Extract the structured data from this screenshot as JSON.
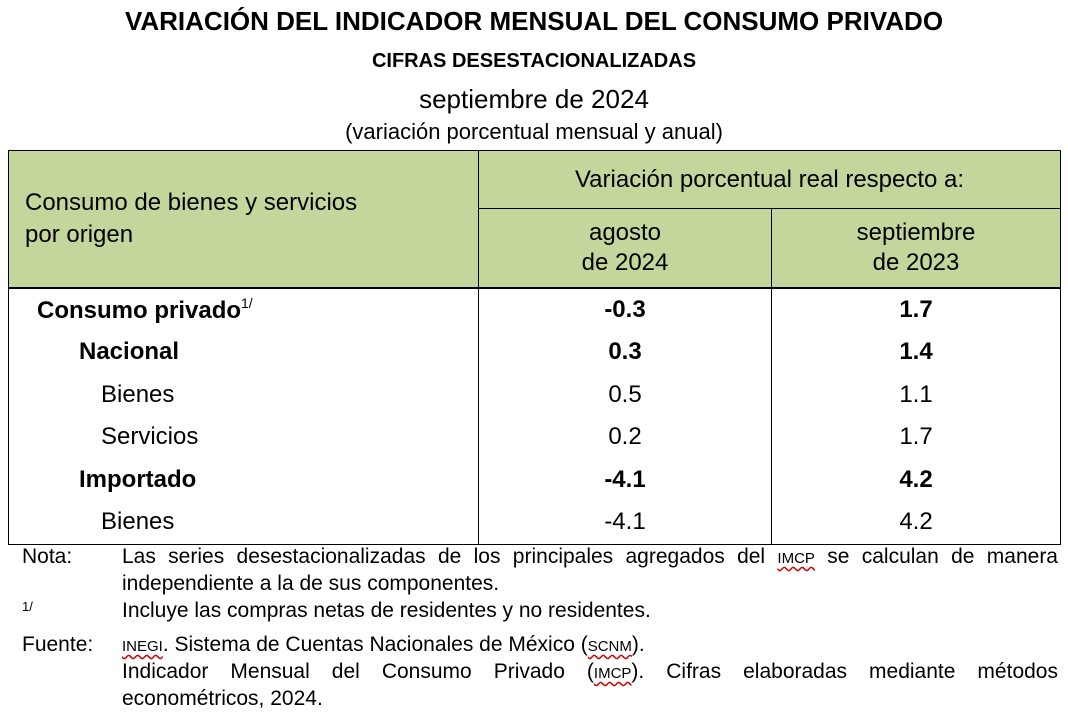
{
  "header": {
    "title": "VARIACIÓN DEL INDICADOR MENSUAL DEL CONSUMO PRIVADO",
    "subtitle": "CIFRAS DESESTACIONALIZADAS",
    "period": "septiembre de 2024",
    "unit": "(variación porcentual mensual y anual)"
  },
  "table": {
    "row_header": [
      "Consumo de bienes y servicios",
      "por origen"
    ],
    "group_header": "Variación porcentual real respecto a:",
    "columns": [
      [
        "agosto",
        "de 2024"
      ],
      [
        "septiembre",
        "de 2023"
      ]
    ],
    "rows": [
      {
        "label": "Consumo privado",
        "footnote": "1/",
        "level": 0,
        "values": [
          "-0.3",
          "1.7"
        ]
      },
      {
        "label": "Nacional",
        "level": 1,
        "values": [
          "0.3",
          "1.4"
        ]
      },
      {
        "label": "Bienes",
        "level": 2,
        "values": [
          "0.5",
          "1.1"
        ]
      },
      {
        "label": "Servicios",
        "level": 2,
        "values": [
          "0.2",
          "1.7"
        ]
      },
      {
        "label": "Importado",
        "level": 1,
        "values": [
          "-4.1",
          "4.2"
        ]
      },
      {
        "label": "Bienes",
        "level": 2,
        "values": [
          "-4.1",
          "4.2"
        ]
      }
    ]
  },
  "notes": [
    {
      "label": "Nota:",
      "lines": [
        [
          "Las series desestacionalizadas de los principales agregados del ",
          {
            "abbr": "IMCP"
          },
          " se calculan de manera independiente a la de sus componentes."
        ]
      ]
    },
    {
      "label": "1/",
      "lines": [
        [
          "Incluye las compras netas de residentes y no residentes."
        ]
      ]
    },
    {
      "label": "Fuente:",
      "lines": [
        [
          {
            "abbr": "INEGI"
          },
          ". Sistema de Cuentas Nacionales de México (",
          {
            "abbr": "SCNM"
          },
          ")."
        ],
        [
          "Indicador Mensual del Consumo Privado (",
          {
            "abbr": "IMCP"
          },
          "). Cifras elaboradas mediante métodos econométricos, 2024."
        ]
      ]
    }
  ]
}
